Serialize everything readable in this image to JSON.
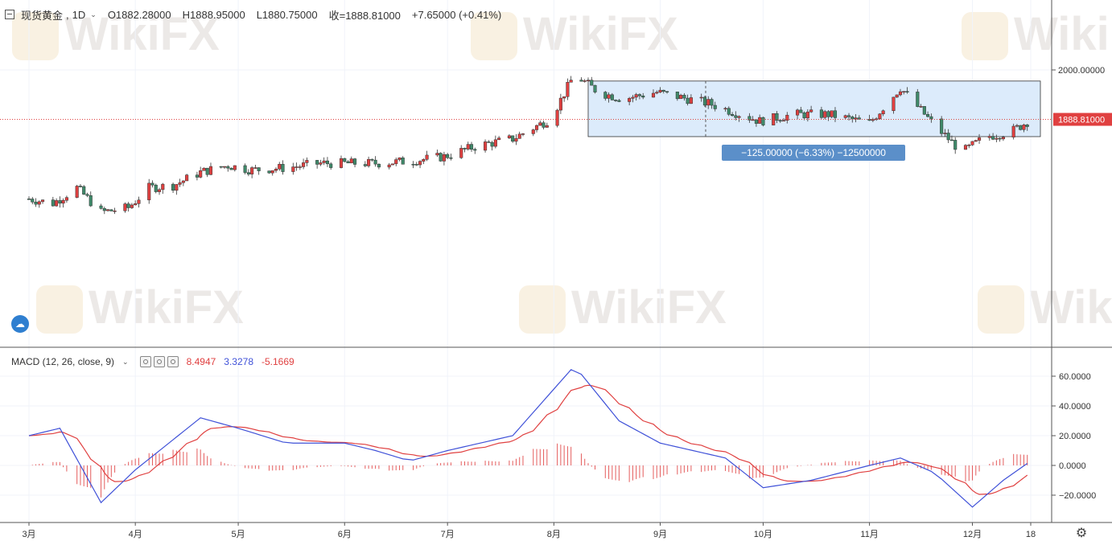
{
  "header": {
    "symbol": "现货黄金",
    "interval": "1D",
    "open": "O1882.28000",
    "high": "H1888.95000",
    "low": "L1880.75000",
    "close": "收=1888.81000",
    "change": "+7.65000 (+0.41%)"
  },
  "macd_header": {
    "label": "MACD (12, 26, close, 9)",
    "v1": "8.4947",
    "v2": "3.3278",
    "v3": "-5.1669"
  },
  "price_axis": {
    "ticks": [
      "2000.00000"
    ],
    "last_price": "1888.81000"
  },
  "macd_axis": {
    "ticks": [
      "60.0000",
      "40.0000",
      "20.0000",
      "0.0000",
      "−20.0000"
    ]
  },
  "time_axis": {
    "ticks": [
      "3月",
      "4月",
      "5月",
      "6月",
      "7月",
      "8月",
      "9月",
      "10月",
      "11月",
      "12月",
      "18"
    ]
  },
  "measure_tool": {
    "label": "−125.00000 (−6.33%) −12500000"
  },
  "watermark": "WikiFX",
  "colors": {
    "up": "#e04040",
    "down": "#3f8a6a",
    "macd_line": "#3f51d8",
    "signal_line": "#e04040",
    "measure_fill": "#dcebfb",
    "measure_label_bg": "#5b8fc9",
    "last_price_bg": "#e04040"
  },
  "chart_data": {
    "type": "candlestick",
    "price_keypoints": [
      [
        "03-01",
        1710
      ],
      [
        "03-08",
        1700
      ],
      [
        "03-15",
        1735
      ],
      [
        "03-22",
        1680
      ],
      [
        "03-30",
        1690
      ],
      [
        "04-05",
        1735
      ],
      [
        "04-12",
        1740
      ],
      [
        "04-20",
        1770
      ],
      [
        "04-28",
        1785
      ],
      [
        "05-05",
        1775
      ],
      [
        "05-15",
        1780
      ],
      [
        "05-25",
        1790
      ],
      [
        "06-01",
        1790
      ],
      [
        "06-10",
        1790
      ],
      [
        "06-20",
        1795
      ],
      [
        "06-30",
        1805
      ],
      [
        "07-10",
        1830
      ],
      [
        "07-20",
        1845
      ],
      [
        "07-31",
        1890
      ],
      [
        "08-07",
        1990
      ],
      [
        "08-14",
        1950
      ],
      [
        "08-21",
        1935
      ],
      [
        "08-31",
        1950
      ],
      [
        "09-15",
        1925
      ],
      [
        "09-30",
        1885
      ],
      [
        "10-10",
        1900
      ],
      [
        "10-20",
        1900
      ],
      [
        "11-01",
        1880
      ],
      [
        "11-10",
        1960
      ],
      [
        "11-20",
        1875
      ],
      [
        "11-28",
        1815
      ],
      [
        "12-05",
        1850
      ],
      [
        "12-12",
        1860
      ],
      [
        "12-18",
        1888
      ]
    ],
    "macd_keypoints": [
      [
        "03-01",
        20
      ],
      [
        "03-10",
        25
      ],
      [
        "03-22",
        -25
      ],
      [
        "04-01",
        -3
      ],
      [
        "04-20",
        32
      ],
      [
        "05-01",
        25
      ],
      [
        "05-15",
        15
      ],
      [
        "06-01",
        15
      ],
      [
        "06-10",
        10
      ],
      [
        "06-20",
        3
      ],
      [
        "07-01",
        10
      ],
      [
        "07-20",
        20
      ],
      [
        "08-07",
        67
      ],
      [
        "08-20",
        30
      ],
      [
        "09-01",
        15
      ],
      [
        "09-20",
        5
      ],
      [
        "10-01",
        -15
      ],
      [
        "10-15",
        -10
      ],
      [
        "11-01",
        0
      ],
      [
        "11-10",
        5
      ],
      [
        "11-20",
        -5
      ],
      [
        "12-01",
        -28
      ],
      [
        "12-10",
        -10
      ],
      [
        "12-18",
        3
      ]
    ],
    "measure_range": {
      "from": "08-11",
      "to": "12-18",
      "high": 1975,
      "low": 1850
    }
  }
}
